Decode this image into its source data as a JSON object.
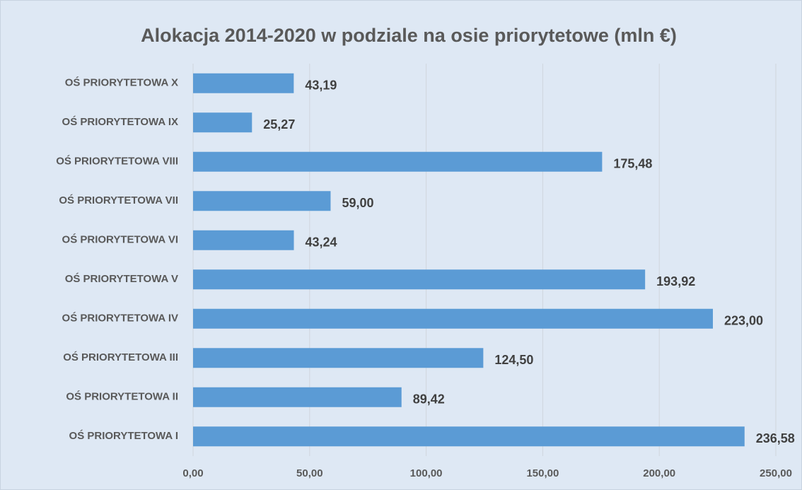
{
  "chart_data": {
    "type": "bar",
    "orientation": "horizontal",
    "title": "Alokacja 2014-2020 w podziale na osie priorytetowe (mln €)",
    "categories": [
      "OŚ PRIORYTETOWA X",
      "OŚ PRIORYTETOWA IX",
      "OŚ PRIORYTETOWA VIII",
      "OŚ PRIORYTETOWA VII",
      "OŚ PRIORYTETOWA VI",
      "OŚ PRIORYTETOWA V",
      "OŚ PRIORYTETOWA IV",
      "OŚ PRIORYTETOWA III",
      "OŚ PRIORYTETOWA II",
      "OŚ PRIORYTETOWA I"
    ],
    "values": [
      43.19,
      25.27,
      175.48,
      59.0,
      43.24,
      193.92,
      223.0,
      124.5,
      89.42,
      236.58
    ],
    "value_labels": [
      "43,19",
      "25,27",
      "175,48",
      "59,00",
      "43,24",
      "193,92",
      "223,00",
      "124,50",
      "89,42",
      "236,58"
    ],
    "color": "#5b9bd5",
    "xlim": [
      0,
      250
    ],
    "xticks": [
      {
        "value": 0,
        "label": "0,00"
      },
      {
        "value": 50,
        "label": "50,00"
      },
      {
        "value": 100,
        "label": "100,00"
      },
      {
        "value": 150,
        "label": "150,00"
      },
      {
        "value": 200,
        "label": "200,00"
      },
      {
        "value": 250,
        "label": "250,00"
      }
    ],
    "grid": true
  }
}
